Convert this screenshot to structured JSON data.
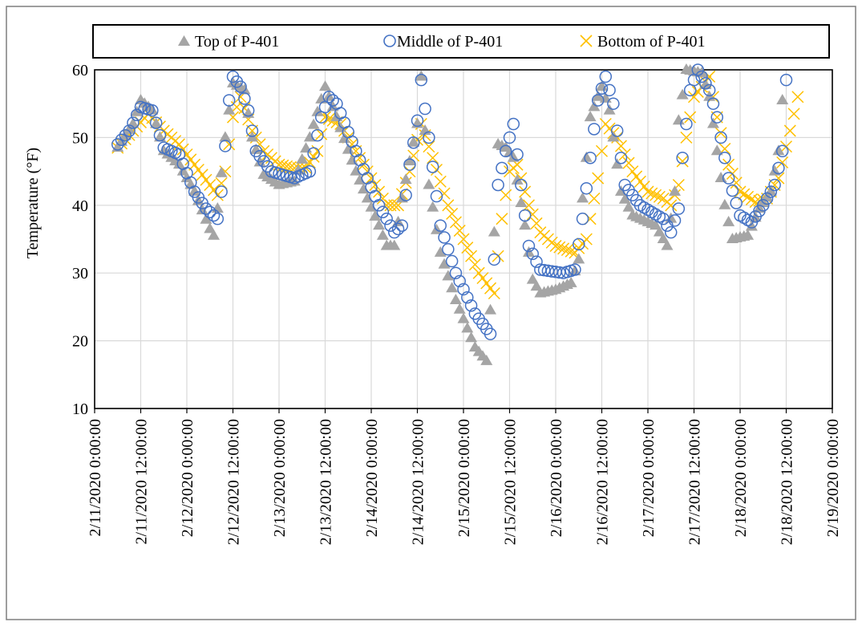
{
  "chart_data": {
    "type": "scatter",
    "title": "",
    "xlabel": "",
    "ylabel": "Temperature (°F)",
    "ylim": [
      10,
      60
    ],
    "yticks": [
      10,
      20,
      30,
      40,
      50,
      60
    ],
    "xlim": [
      "2/11/2020 0:00:00",
      "2/19/2020 0:00:00"
    ],
    "xtick_labels": [
      "2/11/2020 0:00:00",
      "2/11/2020 12:00:00",
      "2/12/2020 0:00:00",
      "2/12/2020 12:00:00",
      "2/13/2020 0:00:00",
      "2/13/2020 12:00:00",
      "2/14/2020 0:00:00",
      "2/14/2020 12:00:00",
      "2/15/2020 0:00:00",
      "2/15/2020 12:00:00",
      "2/16/2020 0:00:00",
      "2/16/2020 12:00:00",
      "2/17/2020 0:00:00",
      "2/17/2020 12:00:00",
      "2/18/2020 0:00:00",
      "2/18/2020 12:00:00",
      "2/19/2020 0:00:00"
    ],
    "grid": true,
    "legend": "top",
    "colors": {
      "top": "#a5a5a5",
      "middle": "#4472c4",
      "bottom": "#ffc000"
    },
    "series": [
      {
        "name": "Top of P-401",
        "marker": "triangle",
        "keypoints": [
          [
            "2/11/2020 06:00",
            48.5
          ],
          [
            "2/11/2020 10:00",
            52
          ],
          [
            "2/11/2020 12:00",
            55.5
          ],
          [
            "2/11/2020 15:00",
            54
          ],
          [
            "2/11/2020 18:00",
            48
          ],
          [
            "2/11/2020 22:00",
            46
          ],
          [
            "2/12/2020 02:00",
            42
          ],
          [
            "2/12/2020 06:00",
            36.5
          ],
          [
            "2/12/2020 07:00",
            35.5
          ],
          [
            "2/12/2020 08:00",
            39.5
          ],
          [
            "2/12/2020 10:00",
            50
          ],
          [
            "2/12/2020 12:00",
            58
          ],
          [
            "2/12/2020 15:00",
            57
          ],
          [
            "2/12/2020 17:00",
            50
          ],
          [
            "2/12/2020 20:00",
            44.5
          ],
          [
            "2/13/2020 00:00",
            43
          ],
          [
            "2/13/2020 04:00",
            43.5
          ],
          [
            "2/13/2020 08:00",
            50
          ],
          [
            "2/13/2020 12:00",
            57.5
          ],
          [
            "2/13/2020 15:00",
            53
          ],
          [
            "2/13/2020 20:00",
            45
          ],
          [
            "2/14/2020 02:00",
            37
          ],
          [
            "2/14/2020 04:00",
            34
          ],
          [
            "2/14/2020 06:00",
            34
          ],
          [
            "2/14/2020 08:00",
            41
          ],
          [
            "2/14/2020 12:00",
            52
          ],
          [
            "2/14/2020 13:00",
            59
          ],
          [
            "2/14/2020 15:00",
            43
          ],
          [
            "2/14/2020 18:00",
            33
          ],
          [
            "2/14/2020 22:00",
            26
          ],
          [
            "2/15/2020 03:00",
            19
          ],
          [
            "2/15/2020 06:00",
            17
          ],
          [
            "2/15/2020 07:00",
            24.5
          ],
          [
            "2/15/2020 08:00",
            36
          ],
          [
            "2/15/2020 09:00",
            49
          ],
          [
            "2/15/2020 11:00",
            48.5
          ],
          [
            "2/15/2020 13:00",
            47
          ],
          [
            "2/15/2020 16:00",
            37
          ],
          [
            "2/15/2020 18:00",
            29
          ],
          [
            "2/15/2020 20:00",
            27
          ],
          [
            "2/16/2020 00:00",
            27.5
          ],
          [
            "2/16/2020 04:00",
            28.5
          ],
          [
            "2/16/2020 06:00",
            32
          ],
          [
            "2/16/2020 07:00",
            41
          ],
          [
            "2/16/2020 09:00",
            53
          ],
          [
            "2/16/2020 12:00",
            57.5
          ],
          [
            "2/16/2020 14:00",
            54
          ],
          [
            "2/16/2020 17:00",
            42
          ],
          [
            "2/16/2020 20:00",
            38.5
          ],
          [
            "2/17/2020 02:00",
            37
          ],
          [
            "2/17/2020 05:00",
            34
          ],
          [
            "2/17/2020 07:00",
            42
          ],
          [
            "2/17/2020 08:00",
            52.5
          ],
          [
            "2/17/2020 10:00",
            60
          ],
          [
            "2/17/2020 14:00",
            59.5
          ],
          [
            "2/17/2020 16:00",
            56
          ],
          [
            "2/17/2020 18:00",
            48
          ],
          [
            "2/17/2020 20:00",
            40
          ],
          [
            "2/17/2020 22:00",
            35
          ],
          [
            "2/18/2020 02:00",
            35.5
          ],
          [
            "2/18/2020 05:00",
            39.5
          ],
          [
            "2/18/2020 08:00",
            42
          ],
          [
            "2/18/2020 10:00",
            48
          ],
          [
            "2/18/2020 11:00",
            55.5
          ]
        ]
      },
      {
        "name": "Middle of P-401",
        "marker": "circle",
        "keypoints": [
          [
            "2/11/2020 06:00",
            49
          ],
          [
            "2/11/2020 09:00",
            51
          ],
          [
            "2/11/2020 12:00",
            54.5
          ],
          [
            "2/11/2020 15:00",
            54
          ],
          [
            "2/11/2020 18:00",
            48.5
          ],
          [
            "2/11/2020 22:00",
            47.5
          ],
          [
            "2/12/2020 02:00",
            42
          ],
          [
            "2/12/2020 05:00",
            39.5
          ],
          [
            "2/12/2020 08:00",
            38
          ],
          [
            "2/12/2020 09:00",
            42
          ],
          [
            "2/12/2020 11:00",
            55.5
          ],
          [
            "2/12/2020 12:00",
            59
          ],
          [
            "2/12/2020 14:00",
            57.5
          ],
          [
            "2/12/2020 16:00",
            54
          ],
          [
            "2/12/2020 18:00",
            48
          ],
          [
            "2/12/2020 22:00",
            45
          ],
          [
            "2/13/2020 04:00",
            44
          ],
          [
            "2/13/2020 08:00",
            45
          ],
          [
            "2/13/2020 11:00",
            53
          ],
          [
            "2/13/2020 13:00",
            56
          ],
          [
            "2/13/2020 15:00",
            55
          ],
          [
            "2/13/2020 20:00",
            48
          ],
          [
            "2/14/2020 02:00",
            40
          ],
          [
            "2/14/2020 06:00",
            36
          ],
          [
            "2/14/2020 08:00",
            37
          ],
          [
            "2/14/2020 10:00",
            46
          ],
          [
            "2/14/2020 12:00",
            52.5
          ],
          [
            "2/14/2020 13:00",
            58.5
          ],
          [
            "2/14/2020 15:00",
            50
          ],
          [
            "2/14/2020 18:00",
            37
          ],
          [
            "2/14/2020 22:00",
            30
          ],
          [
            "2/15/2020 03:00",
            24
          ],
          [
            "2/15/2020 07:00",
            21
          ],
          [
            "2/15/2020 08:00",
            32
          ],
          [
            "2/15/2020 09:00",
            43
          ],
          [
            "2/15/2020 11:00",
            48
          ],
          [
            "2/15/2020 13:00",
            52
          ],
          [
            "2/15/2020 15:00",
            43
          ],
          [
            "2/15/2020 17:00",
            34
          ],
          [
            "2/15/2020 20:00",
            30.5
          ],
          [
            "2/16/2020 02:00",
            30
          ],
          [
            "2/16/2020 05:00",
            30.5
          ],
          [
            "2/16/2020 07:00",
            38
          ],
          [
            "2/16/2020 09:00",
            47
          ],
          [
            "2/16/2020 11:00",
            55.5
          ],
          [
            "2/16/2020 13:00",
            59
          ],
          [
            "2/16/2020 15:00",
            55
          ],
          [
            "2/16/2020 18:00",
            43
          ],
          [
            "2/16/2020 22:00",
            40
          ],
          [
            "2/17/2020 04:00",
            38
          ],
          [
            "2/17/2020 06:00",
            36
          ],
          [
            "2/17/2020 08:00",
            39.5
          ],
          [
            "2/17/2020 09:00",
            47
          ],
          [
            "2/17/2020 11:00",
            57
          ],
          [
            "2/17/2020 13:00",
            60
          ],
          [
            "2/17/2020 16:00",
            57
          ],
          [
            "2/17/2020 18:00",
            53
          ],
          [
            "2/17/2020 21:00",
            44
          ],
          [
            "2/18/2020 00:00",
            38.5
          ],
          [
            "2/18/2020 03:00",
            37.5
          ],
          [
            "2/18/2020 06:00",
            40
          ],
          [
            "2/18/2020 09:00",
            43
          ],
          [
            "2/18/2020 11:00",
            48
          ],
          [
            "2/18/2020 12:00",
            58.5
          ]
        ]
      },
      {
        "name": "Bottom of P-401",
        "marker": "x",
        "keypoints": [
          [
            "2/11/2020 06:00",
            48.5
          ],
          [
            "2/11/2020 10:00",
            51
          ],
          [
            "2/11/2020 14:00",
            53.5
          ],
          [
            "2/11/2020 18:00",
            51
          ],
          [
            "2/11/2020 22:00",
            49
          ],
          [
            "2/12/2020 02:00",
            46
          ],
          [
            "2/12/2020 06:00",
            43
          ],
          [
            "2/12/2020 08:00",
            41.5
          ],
          [
            "2/12/2020 10:00",
            45
          ],
          [
            "2/12/2020 12:00",
            53
          ],
          [
            "2/12/2020 14:00",
            56
          ],
          [
            "2/12/2020 17:00",
            51
          ],
          [
            "2/12/2020 20:00",
            48
          ],
          [
            "2/13/2020 00:00",
            46
          ],
          [
            "2/13/2020 04:00",
            45.5
          ],
          [
            "2/13/2020 07:00",
            45.5
          ],
          [
            "2/13/2020 10:00",
            48
          ],
          [
            "2/13/2020 12:00",
            53
          ],
          [
            "2/13/2020 16:00",
            52
          ],
          [
            "2/13/2020 20:00",
            48
          ],
          [
            "2/14/2020 00:00",
            44
          ],
          [
            "2/14/2020 04:00",
            40
          ],
          [
            "2/14/2020 07:00",
            40
          ],
          [
            "2/14/2020 10:00",
            45
          ],
          [
            "2/14/2020 13:00",
            52
          ],
          [
            "2/14/2020 16:00",
            47
          ],
          [
            "2/14/2020 20:00",
            40
          ],
          [
            "2/15/2020 00:00",
            35
          ],
          [
            "2/15/2020 04:00",
            30
          ],
          [
            "2/15/2020 08:00",
            27
          ],
          [
            "2/15/2020 10:00",
            38
          ],
          [
            "2/15/2020 12:00",
            45
          ],
          [
            "2/15/2020 14:00",
            46
          ],
          [
            "2/15/2020 17:00",
            40
          ],
          [
            "2/15/2020 20:00",
            36
          ],
          [
            "2/16/2020 00:00",
            34
          ],
          [
            "2/16/2020 05:00",
            33
          ],
          [
            "2/16/2020 08:00",
            35
          ],
          [
            "2/16/2020 11:00",
            44
          ],
          [
            "2/16/2020 13:00",
            52
          ],
          [
            "2/16/2020 16:00",
            50
          ],
          [
            "2/16/2020 20:00",
            45
          ],
          [
            "2/17/2020 00:00",
            42
          ],
          [
            "2/17/2020 04:00",
            41
          ],
          [
            "2/17/2020 06:00",
            40
          ],
          [
            "2/17/2020 08:00",
            43
          ],
          [
            "2/17/2020 10:00",
            50
          ],
          [
            "2/17/2020 12:00",
            56
          ],
          [
            "2/17/2020 16:00",
            59
          ],
          [
            "2/17/2020 18:00",
            53
          ],
          [
            "2/17/2020 21:00",
            46
          ],
          [
            "2/18/2020 00:00",
            42
          ],
          [
            "2/18/2020 04:00",
            40.5
          ],
          [
            "2/18/2020 07:00",
            41
          ],
          [
            "2/18/2020 10:00",
            44
          ],
          [
            "2/18/2020 13:00",
            51
          ],
          [
            "2/18/2020 15:00",
            56
          ]
        ]
      }
    ]
  }
}
